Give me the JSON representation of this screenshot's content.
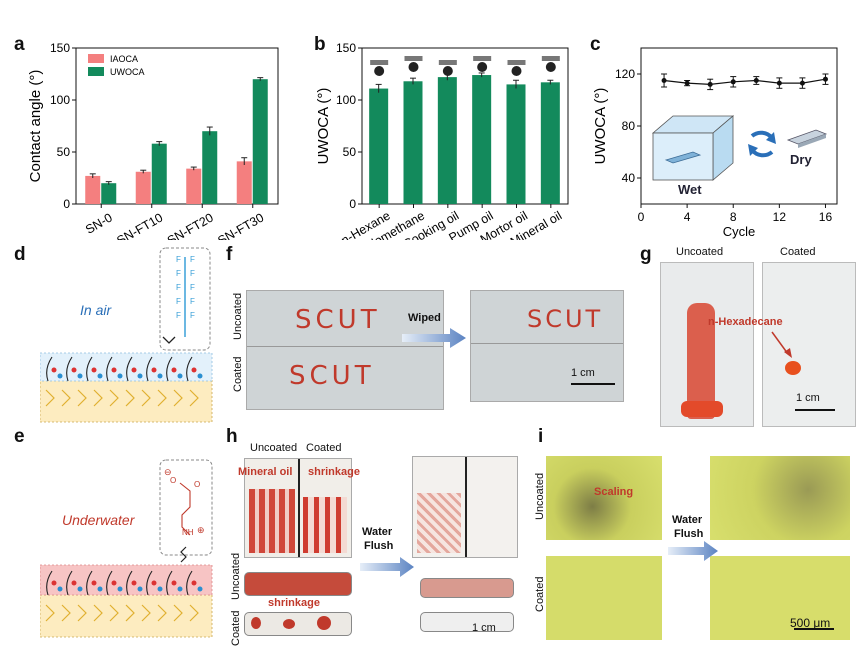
{
  "panels": {
    "a": "a",
    "b": "b",
    "c": "c",
    "d": "d",
    "e": "e",
    "f": "f",
    "g": "g",
    "h": "h",
    "i": "i"
  },
  "chart_data": [
    {
      "id": "a",
      "type": "bar",
      "categories": [
        "SN-0",
        "SN-FT10",
        "SN-FT20",
        "SN-FT30"
      ],
      "series": [
        {
          "name": "IAOCA",
          "color": "#f47f7f",
          "values": [
            27,
            31,
            34,
            41
          ],
          "errors": [
            2,
            1.5,
            1.5,
            3.5
          ]
        },
        {
          "name": "UWOCA",
          "color": "#138a5c",
          "values": [
            20,
            58,
            70,
            120
          ],
          "errors": [
            1.5,
            2,
            4,
            1.5
          ]
        }
      ],
      "ylabel": "Contact angle (°)",
      "ylim": [
        0,
        150
      ],
      "yticks": [
        0,
        50,
        100,
        150
      ],
      "legend": "top-left"
    },
    {
      "id": "b",
      "type": "bar",
      "categories": [
        "n-Hexane",
        "Diiodomethane",
        "Cooking oil",
        "Pump oil",
        "Mortor oil",
        "Mineral oil"
      ],
      "series": [
        {
          "name": "UWOCA",
          "color": "#138a5c",
          "values": [
            111,
            118,
            122,
            124,
            115,
            117
          ],
          "errors": [
            4,
            3,
            3,
            2,
            4,
            2
          ]
        }
      ],
      "ylabel": "UWOCA (°)",
      "ylim": [
        0,
        150
      ],
      "yticks": [
        0,
        50,
        100,
        150
      ]
    },
    {
      "id": "c",
      "type": "line",
      "x": [
        2,
        4,
        6,
        8,
        10,
        12,
        14,
        16
      ],
      "series": [
        {
          "name": "UWOCA",
          "color": "#111111",
          "values": [
            115,
            113,
            112,
            114,
            115,
            113,
            113,
            116
          ],
          "errors": [
            5,
            2,
            4,
            4,
            3,
            4,
            4,
            4
          ]
        }
      ],
      "xlabel": "Cycle",
      "ylabel": "UWOCA (°)",
      "xlim": [
        0,
        17
      ],
      "xticks": [
        0,
        4,
        8,
        12,
        16
      ],
      "ylim": [
        20,
        140
      ],
      "yticks": [
        40,
        80,
        120
      ],
      "inset_labels": {
        "wet": "Wet",
        "dry": "Dry"
      }
    }
  ],
  "panel_d": {
    "caption": "In air",
    "atom": "F"
  },
  "panel_e": {
    "caption": "Underwater",
    "minus": "⊖",
    "o": "O",
    "nh": "NH",
    "plus": "⊕"
  },
  "panel_f": {
    "uncoated": "Uncoated",
    "coated": "Coated",
    "text": "SCUT",
    "arrow": "Wiped",
    "scale": "1 cm"
  },
  "panel_g": {
    "uncoated": "Uncoated",
    "coated": "Coated",
    "label": "n-Hexadecane",
    "scale": "1 cm"
  },
  "panel_h": {
    "uncoated": "Uncoated",
    "coated": "Coated",
    "oil": "Mineral oil",
    "shrink1": "shrinkage",
    "shrink2": "shrinkage",
    "arrow1": "Water",
    "arrow2": "Flush",
    "side_uncoated": "Uncoated",
    "side_coated": "Coated",
    "scale": "1 cm"
  },
  "panel_i": {
    "uncoated": "Uncoated",
    "coated": "Coated",
    "scaling": "Scaling",
    "arrow1": "Water",
    "arrow2": "Flush",
    "scale": "500 μm"
  }
}
